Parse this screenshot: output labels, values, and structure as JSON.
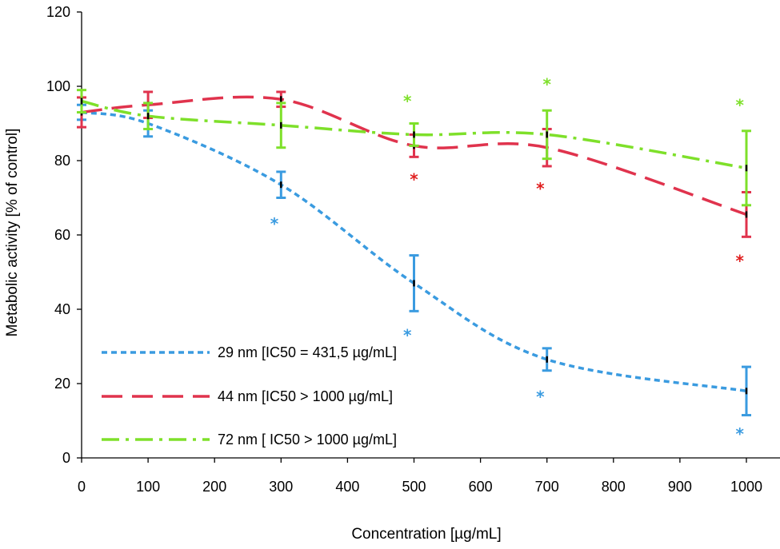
{
  "chart_data": {
    "type": "line",
    "title": "",
    "xlabel": "Concentration [µg/mL]",
    "ylabel": "Metabolic activity [% of control]",
    "xlim": [
      0,
      1000
    ],
    "ylim": [
      0,
      120
    ],
    "xticks": [
      0,
      100,
      200,
      300,
      400,
      500,
      600,
      700,
      800,
      900,
      1000
    ],
    "yticks": [
      0,
      20,
      40,
      60,
      80,
      100,
      120
    ],
    "grid": false,
    "legend_position": "bottom-left",
    "series": [
      {
        "name": "29 nm [IC50 = 431,5 µg/mL]",
        "color": "#3a9be0",
        "dash": "short-dash",
        "x": [
          0,
          100,
          300,
          500,
          700,
          1000
        ],
        "y": [
          93,
          90,
          73.5,
          47,
          26.5,
          18
        ],
        "error": [
          2,
          3.5,
          3.5,
          7.5,
          3,
          6.5
        ],
        "significance": [
          {
            "x": 290,
            "y": 63,
            "label": "*"
          },
          {
            "x": 490,
            "y": 33,
            "label": "*"
          },
          {
            "x": 690,
            "y": 16.5,
            "label": "*"
          },
          {
            "x": 990,
            "y": 6.5,
            "label": "*"
          }
        ]
      },
      {
        "name": "44 nm [IC50 > 1000 µg/mL]",
        "color": "#e0334d",
        "dash": "long-dash",
        "x": [
          0,
          100,
          300,
          500,
          700,
          1000
        ],
        "y": [
          93,
          95,
          96.5,
          84,
          83.5,
          65.5
        ],
        "error": [
          4,
          3.5,
          2,
          3,
          5,
          6
        ],
        "significance": [
          {
            "x": 500,
            "y": 75,
            "label": "*"
          },
          {
            "x": 690,
            "y": 72.5,
            "label": "*"
          },
          {
            "x": 990,
            "y": 53,
            "label": "*"
          }
        ]
      },
      {
        "name": "72 nm [ IC50 > 1000 µg/mL]",
        "color": "#7ee02a",
        "dash": "dash-dot",
        "x": [
          0,
          100,
          300,
          500,
          700,
          1000
        ],
        "y": [
          96,
          92,
          89.5,
          87,
          87,
          78
        ],
        "error": [
          3,
          3.5,
          6,
          3,
          6.5,
          10
        ],
        "significance": [
          {
            "x": 490,
            "y": 96,
            "label": "*"
          },
          {
            "x": 700,
            "y": 100.5,
            "label": "*"
          },
          {
            "x": 990,
            "y": 95,
            "label": "*"
          }
        ]
      }
    ]
  }
}
